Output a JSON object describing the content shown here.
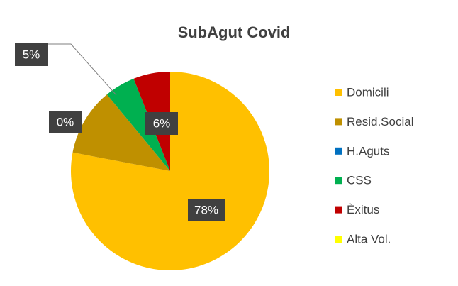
{
  "chart_data": {
    "type": "pie",
    "title": "SubAgut Covid",
    "categories": [
      "Domicili",
      "Resid.Social",
      "H.Aguts",
      "CSS",
      "Èxitus",
      "Alta Vol."
    ],
    "values": [
      78,
      11,
      0,
      5,
      6,
      0
    ],
    "value_labels": [
      "78%",
      null,
      "0%",
      "5%",
      "6%",
      null
    ],
    "colors": [
      "#FFC000",
      "#BF9000",
      "#0070C0",
      "#00B050",
      "#C00000",
      "#FFFF00"
    ],
    "legend": "right"
  }
}
